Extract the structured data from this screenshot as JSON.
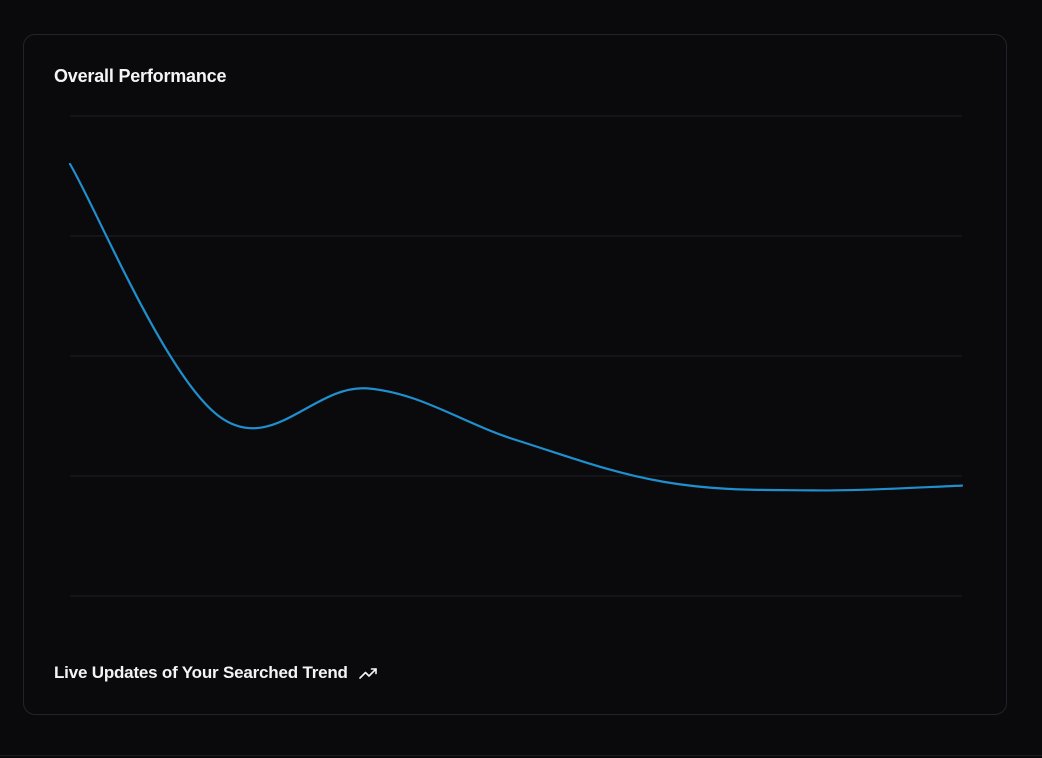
{
  "card": {
    "title": "Overall Performance",
    "footer_text": "Live Updates of Your Searched Trend",
    "footer_icon": "trending-up-icon"
  },
  "colors": {
    "line": "#1f8fce",
    "grid": "#1e1e25",
    "background": "#0a0a0d",
    "text": "#f4f4f5"
  },
  "chart_data": {
    "type": "line",
    "title": "",
    "xlabel": "",
    "ylabel": "",
    "grid": "horizontal",
    "ylim": [
      0,
      4
    ],
    "x": [
      0,
      1,
      2,
      3,
      4,
      5,
      6
    ],
    "series": [
      {
        "values": [
          3.6,
          1.5,
          1.73,
          1.3,
          0.95,
          0.88,
          0.92
        ]
      }
    ]
  }
}
